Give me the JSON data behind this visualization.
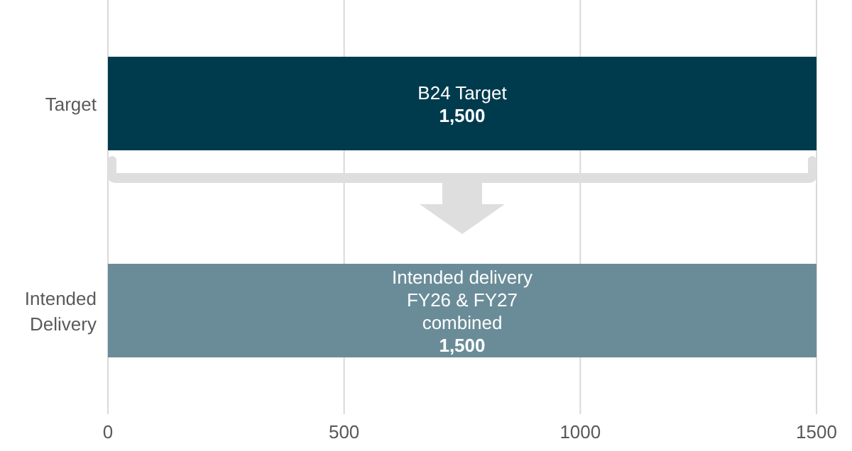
{
  "chart_data": {
    "type": "bar",
    "orientation": "horizontal",
    "categories": [
      "Target",
      "Intended Delivery"
    ],
    "values": [
      1500,
      1500
    ],
    "colors": [
      "#003b4d",
      "#6a8c98"
    ],
    "value_labels": [
      "1,500",
      "1,500"
    ],
    "annotations": [
      "B24 Target",
      "Intended delivery FY26 & FY27 combined"
    ],
    "xlim": [
      0,
      1500
    ],
    "xticks": [
      0,
      500,
      1000,
      1500
    ],
    "grid": "x"
  }
}
